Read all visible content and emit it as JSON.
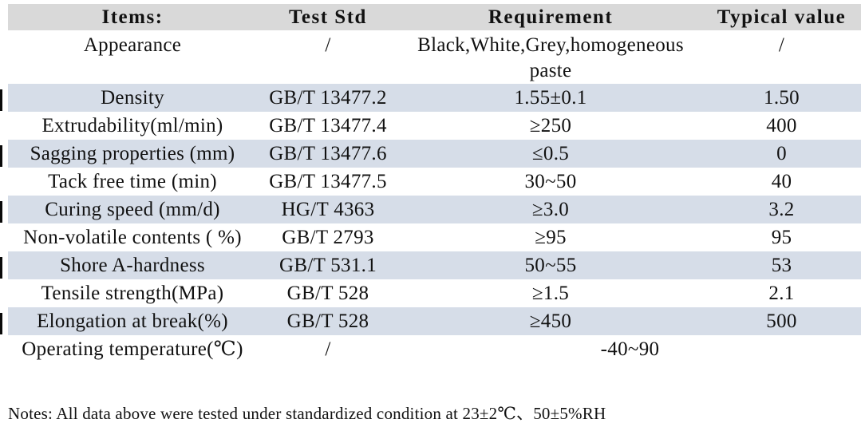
{
  "colors": {
    "header_bg": "#d9d9d9",
    "shaded_row_bg": "#d6dde8",
    "text": "#111111",
    "page_bg": "#ffffff"
  },
  "table": {
    "headers": {
      "items": "Items:",
      "test_std": "Test Std",
      "requirement": "Requirement",
      "typical": "Typical value"
    },
    "rows": [
      {
        "item": "Appearance",
        "test_std": "/",
        "requirement": "Black,White,Grey,homogeneous paste",
        "typical": "/"
      },
      {
        "item": "Density",
        "test_std": "GB/T 13477.2",
        "requirement": "1.55±0.1",
        "typical": "1.50"
      },
      {
        "item": "Extrudability(ml/min)",
        "test_std": "GB/T 13477.4",
        "requirement": "≥250",
        "typical": "400"
      },
      {
        "item": "Sagging properties (mm)",
        "test_std": "GB/T 13477.6",
        "requirement": "≤0.5",
        "typical": "0"
      },
      {
        "item": "Tack free time (min)",
        "test_std": "GB/T 13477.5",
        "requirement": "30~50",
        "typical": "40"
      },
      {
        "item": "Curing speed (mm/d)",
        "test_std": "HG/T 4363",
        "requirement": "≥3.0",
        "typical": "3.2"
      },
      {
        "item": "Non-volatile contents ( %)",
        "test_std": "GB/T 2793",
        "requirement": "≥95",
        "typical": "95"
      },
      {
        "item": "Shore A-hardness",
        "test_std": "GB/T 531.1",
        "requirement": "50~55",
        "typical": "53"
      },
      {
        "item": "Tensile strength(MPa)",
        "test_std": "GB/T 528",
        "requirement": "≥1.5",
        "typical": "2.1"
      },
      {
        "item": "Elongation at break(%)",
        "test_std": "GB/T 528",
        "requirement": "≥450",
        "typical": "500"
      },
      {
        "item": "Operating temperature(℃)",
        "test_std": "/",
        "requirement": "-40~90"
      }
    ]
  },
  "notes": "Notes: All data above were tested under standardized condition at 23±2℃、50±5%RH"
}
